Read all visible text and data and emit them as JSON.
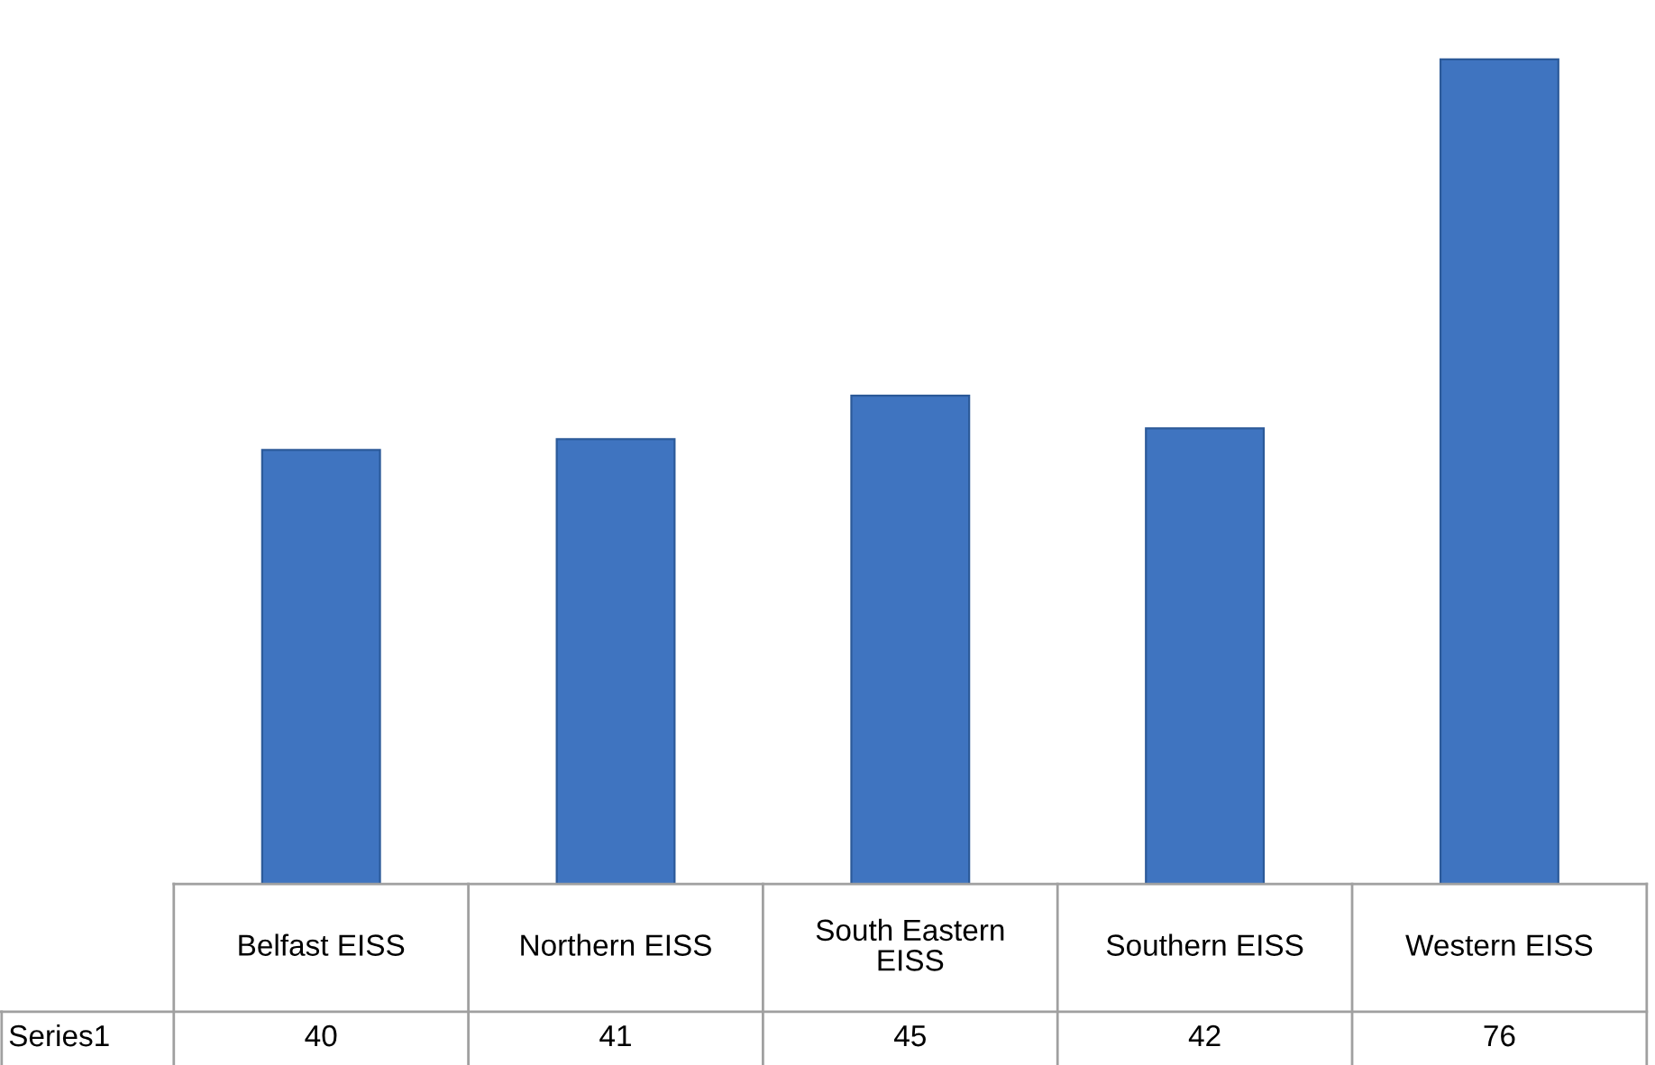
{
  "chart_data": {
    "type": "bar",
    "categories": [
      "Belfast EISS",
      "Northern EISS",
      "South Eastern EISS",
      "Southern EISS",
      "Western EISS"
    ],
    "series": [
      {
        "name": "Series1",
        "color": "#3f74c0",
        "values": [
          40,
          41,
          45,
          42,
          76
        ]
      }
    ],
    "data_labels": true
  }
}
